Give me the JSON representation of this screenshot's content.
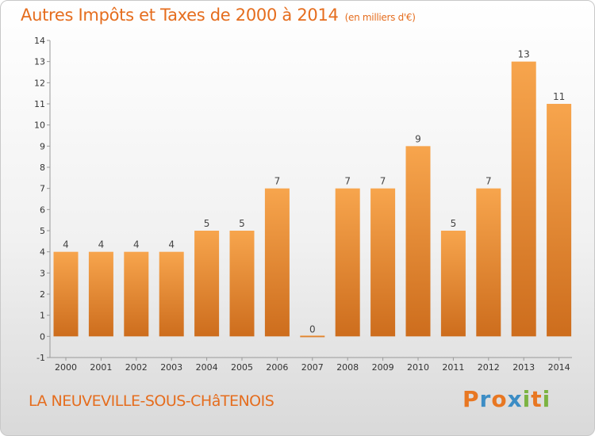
{
  "header": {
    "title": "Autres Impôts et Taxes de 2000 à 2014",
    "unit": "(en milliers d'€)"
  },
  "footer": {
    "commune": "LA NEUVEVILLE-SOUS-CHâTENOIS",
    "logo_letters": [
      "P",
      "r",
      "o",
      "x",
      "i",
      "t",
      "i"
    ],
    "logo_colors": [
      "#e87722",
      "#3c8dc5",
      "#e87722",
      "#3c8dc5",
      "#7cb342",
      "#e87722",
      "#7cb342"
    ]
  },
  "colors": {
    "bar_light": "#f7a54d",
    "bar_dark": "#cd6d1d",
    "title": "#e56d1e"
  },
  "chart_data": {
    "type": "bar",
    "title": "Autres Impôts et Taxes de 2000 à 2014",
    "subtitle": "(en milliers d'€)",
    "xlabel": "",
    "ylabel": "",
    "categories": [
      "2000",
      "2001",
      "2002",
      "2003",
      "2004",
      "2005",
      "2006",
      "2007",
      "2008",
      "2009",
      "2010",
      "2011",
      "2012",
      "2013",
      "2014"
    ],
    "values": [
      4,
      4,
      4,
      4,
      5,
      5,
      7,
      0,
      7,
      7,
      9,
      5,
      7,
      13,
      11
    ],
    "ylim": [
      -1,
      14
    ],
    "yticks": [
      -1,
      0,
      1,
      2,
      3,
      4,
      5,
      6,
      7,
      8,
      9,
      10,
      11,
      12,
      13,
      14
    ],
    "grid": false,
    "legend": "none"
  }
}
